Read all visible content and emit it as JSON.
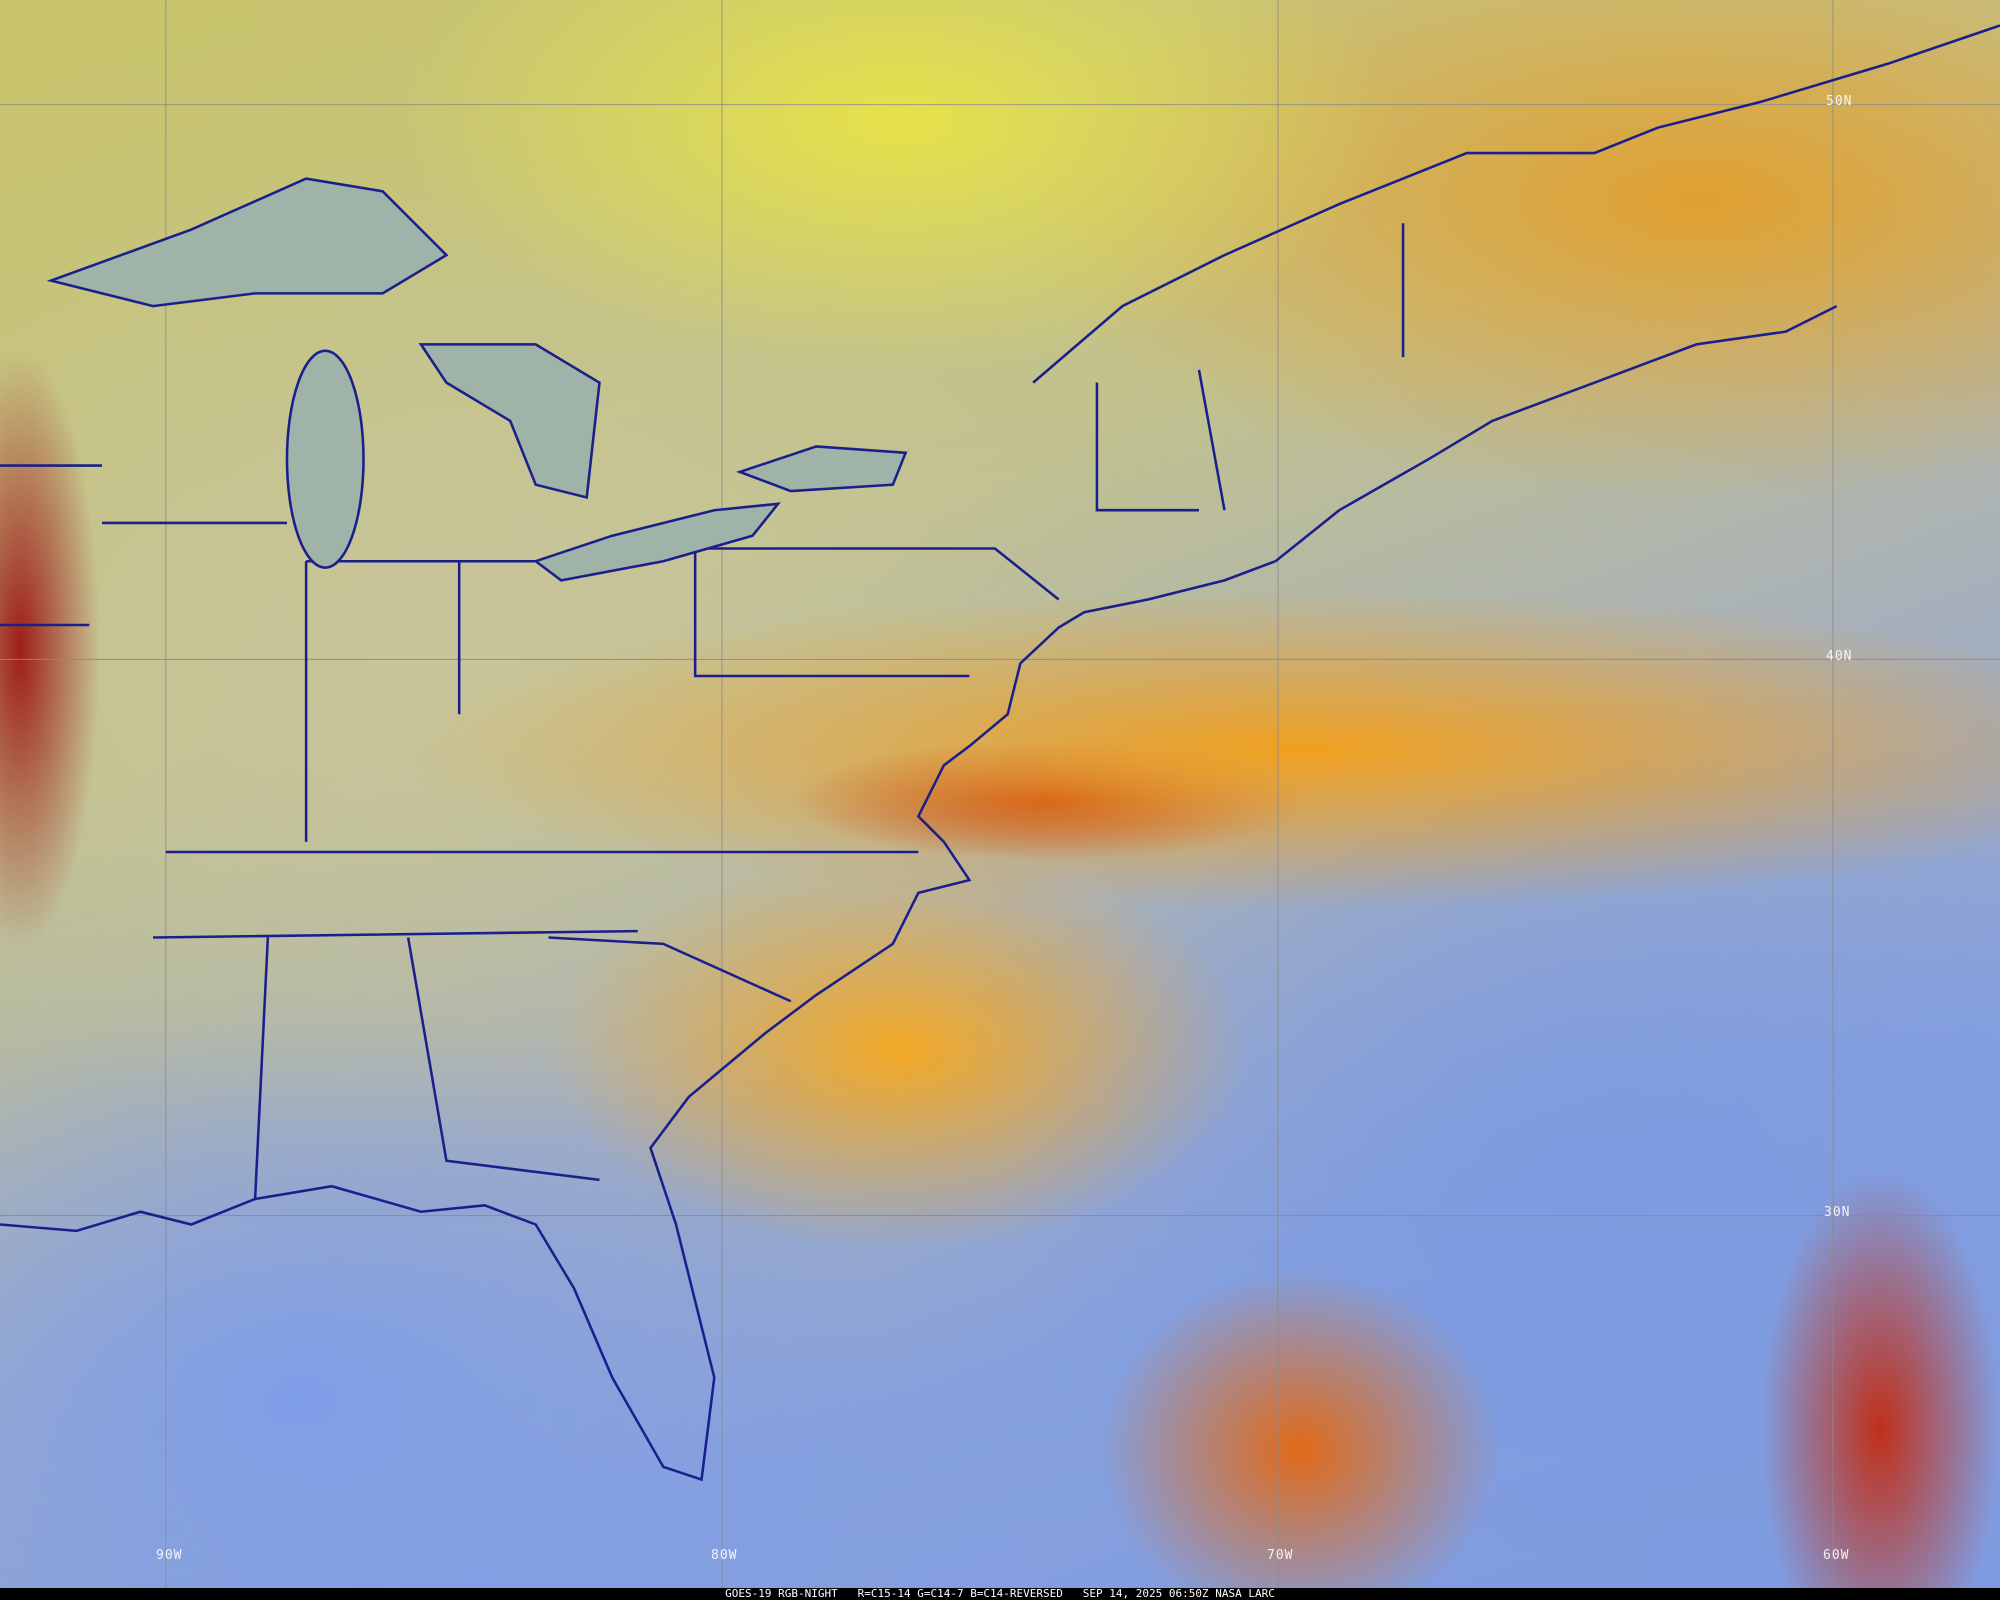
{
  "caption": "GOES-19 RGB-NIGHT   R=C15-14 G=C14-7 B=C14-REVERSED   SEP 14, 2025 06:50Z NASA LARC",
  "latitude_labels": [
    "50N",
    "40N",
    "30N"
  ],
  "longitude_labels": [
    "90W",
    "80W",
    "70W",
    "60W"
  ],
  "colors": {
    "coastline": "#1a1f8c",
    "gridline": "#8a8a8a",
    "ocean_clear": "#7f9be0",
    "high_cloud": "#f0a020",
    "deep_cloud": "#b81e10"
  }
}
